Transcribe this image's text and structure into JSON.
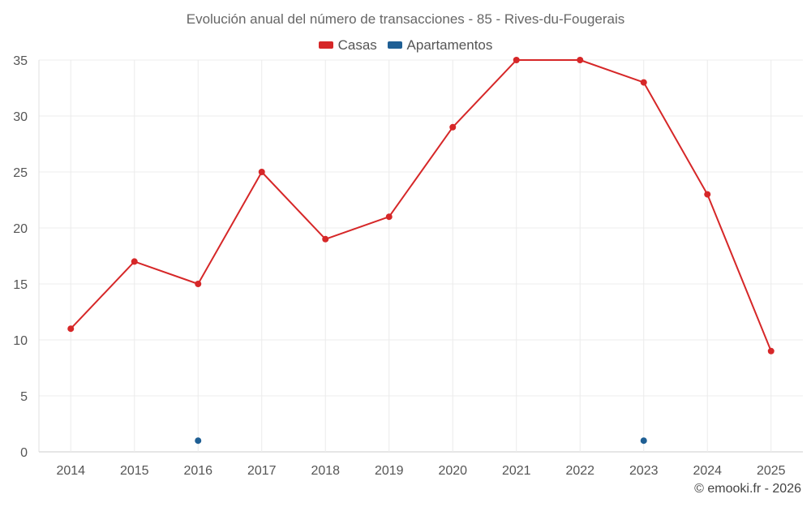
{
  "chart_data": {
    "type": "line",
    "title": "Evolución anual del número de transacciones - 85 - Rives-du-Fougerais",
    "categories": [
      "2014",
      "2015",
      "2016",
      "2017",
      "2018",
      "2019",
      "2020",
      "2021",
      "2022",
      "2023",
      "2024",
      "2025"
    ],
    "series": [
      {
        "name": "Casas",
        "color": "#d62728",
        "values": [
          11,
          17,
          15,
          25,
          19,
          21,
          29,
          35,
          35,
          33,
          23,
          9
        ]
      },
      {
        "name": "Apartamentos",
        "color": "#1f5f94",
        "values": [
          null,
          null,
          1,
          null,
          null,
          null,
          null,
          null,
          null,
          1,
          null,
          null
        ]
      }
    ],
    "ylim": [
      0,
      35
    ],
    "yticks": [
      0,
      5,
      10,
      15,
      20,
      25,
      30,
      35
    ],
    "xlabel": "",
    "ylabel": "",
    "grid": true,
    "legend": "top-center"
  },
  "footer": {
    "credit": "© emooki.fr - 2026"
  }
}
